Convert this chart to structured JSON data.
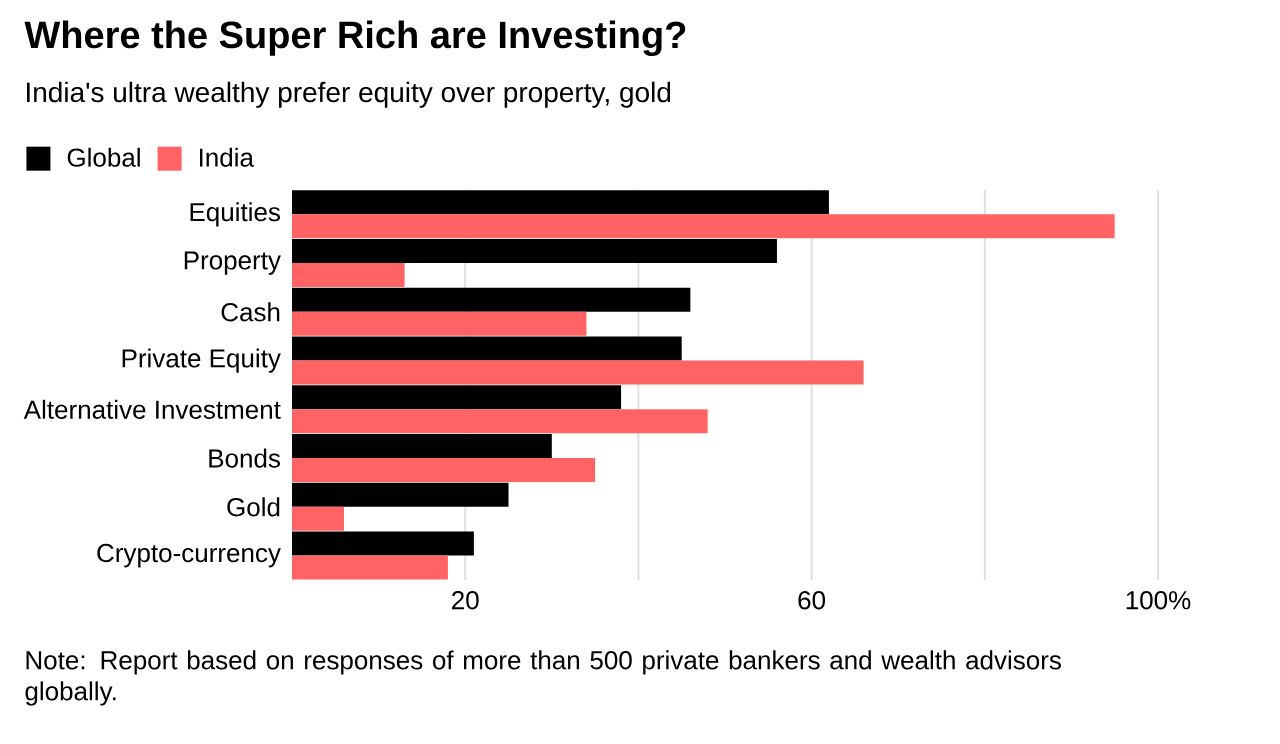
{
  "chart_data": {
    "type": "bar",
    "orientation": "horizontal",
    "title": "Where the Super Rich are Investing?",
    "subtitle": "India's ultra wealthy prefer equity over property, gold",
    "categories": [
      "Equities",
      "Property",
      "Cash",
      "Private Equity",
      "Alternative Investment",
      "Bonds",
      "Gold",
      "Crypto-currency"
    ],
    "series": [
      {
        "name": "Global",
        "color": "#000000",
        "values": [
          62,
          56,
          46,
          45,
          38,
          30,
          25,
          21
        ]
      },
      {
        "name": "India",
        "color": "#ff6363",
        "values": [
          95,
          13,
          34,
          66,
          48,
          35,
          6,
          18
        ]
      }
    ],
    "xlim": [
      0,
      100
    ],
    "xticks": [
      {
        "value": 20,
        "label": "20"
      },
      {
        "value": 40,
        "label": null
      },
      {
        "value": 60,
        "label": "60"
      },
      {
        "value": 80,
        "label": null
      },
      {
        "value": 100,
        "label": "100%"
      }
    ],
    "grid": "x",
    "legend": "top left",
    "annotations": [
      "Note: Report based on responses of more than 500 private bankers and wealth advisors globally."
    ]
  }
}
